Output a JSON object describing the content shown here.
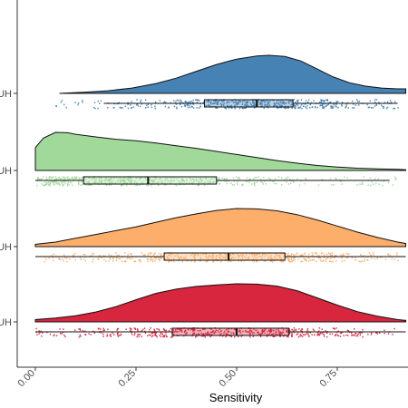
{
  "chart_data": {
    "type": "raincloud",
    "xlabel": "Sensitivity",
    "ylabel": "",
    "xlim": [
      -0.05,
      0.92
    ],
    "x_ticks": [
      "0.00",
      "0.25",
      "0.50",
      "0.75"
    ],
    "x_tick_values": [
      0,
      0.25,
      0.5,
      0.75
    ],
    "grid": false,
    "series": [
      {
        "label": "UH",
        "color": "#d7263d",
        "density": [
          [
            0.0,
            0.06
          ],
          [
            0.05,
            0.1
          ],
          [
            0.1,
            0.16
          ],
          [
            0.15,
            0.26
          ],
          [
            0.2,
            0.4
          ],
          [
            0.25,
            0.58
          ],
          [
            0.3,
            0.75
          ],
          [
            0.35,
            0.86
          ],
          [
            0.4,
            0.93
          ],
          [
            0.45,
            0.97
          ],
          [
            0.5,
            1.0
          ],
          [
            0.55,
            0.99
          ],
          [
            0.6,
            0.94
          ],
          [
            0.65,
            0.82
          ],
          [
            0.7,
            0.63
          ],
          [
            0.75,
            0.44
          ],
          [
            0.8,
            0.27
          ],
          [
            0.85,
            0.15
          ],
          [
            0.9,
            0.06
          ],
          [
            0.92,
            0.04
          ]
        ],
        "box": {
          "q1": 0.34,
          "median": 0.5,
          "q3": 0.63,
          "whisker_low": 0.0,
          "whisker_high": 0.92
        },
        "points_range": [
          0.0,
          0.9
        ]
      },
      {
        "label": "UH",
        "color": "#fdae6b",
        "density": [
          [
            0.0,
            0.06
          ],
          [
            0.05,
            0.12
          ],
          [
            0.1,
            0.22
          ],
          [
            0.15,
            0.32
          ],
          [
            0.2,
            0.42
          ],
          [
            0.25,
            0.52
          ],
          [
            0.3,
            0.64
          ],
          [
            0.35,
            0.76
          ],
          [
            0.4,
            0.86
          ],
          [
            0.45,
            0.95
          ],
          [
            0.5,
            1.0
          ],
          [
            0.55,
            0.99
          ],
          [
            0.6,
            0.94
          ],
          [
            0.65,
            0.84
          ],
          [
            0.7,
            0.7
          ],
          [
            0.75,
            0.54
          ],
          [
            0.8,
            0.38
          ],
          [
            0.85,
            0.24
          ],
          [
            0.9,
            0.12
          ],
          [
            0.92,
            0.08
          ]
        ],
        "box": {
          "q1": 0.32,
          "median": 0.48,
          "q3": 0.62,
          "whisker_low": 0.0,
          "whisker_high": 0.92
        },
        "points_range": [
          0.0,
          0.9
        ]
      },
      {
        "label": "UH",
        "color": "#a1d99b",
        "density": [
          [
            0.0,
            0.6
          ],
          [
            0.02,
            0.85
          ],
          [
            0.05,
            1.0
          ],
          [
            0.08,
            0.99
          ],
          [
            0.1,
            0.95
          ],
          [
            0.15,
            0.88
          ],
          [
            0.2,
            0.82
          ],
          [
            0.25,
            0.78
          ],
          [
            0.3,
            0.72
          ],
          [
            0.35,
            0.65
          ],
          [
            0.4,
            0.58
          ],
          [
            0.45,
            0.5
          ],
          [
            0.5,
            0.42
          ],
          [
            0.55,
            0.34
          ],
          [
            0.6,
            0.26
          ],
          [
            0.65,
            0.19
          ],
          [
            0.7,
            0.13
          ],
          [
            0.75,
            0.09
          ],
          [
            0.8,
            0.06
          ],
          [
            0.85,
            0.04
          ],
          [
            0.9,
            0.03
          ],
          [
            0.92,
            0.02
          ]
        ],
        "box": {
          "q1": 0.12,
          "median": 0.28,
          "q3": 0.45,
          "whisker_low": 0.0,
          "whisker_high": 0.88
        },
        "points_range": [
          0.0,
          0.9
        ]
      },
      {
        "label": "UH",
        "color": "#4682b4",
        "density": [
          [
            0.06,
            0.0
          ],
          [
            0.12,
            0.03
          ],
          [
            0.18,
            0.07
          ],
          [
            0.24,
            0.14
          ],
          [
            0.3,
            0.26
          ],
          [
            0.35,
            0.4
          ],
          [
            0.4,
            0.58
          ],
          [
            0.45,
            0.76
          ],
          [
            0.5,
            0.9
          ],
          [
            0.55,
            0.98
          ],
          [
            0.58,
            1.0
          ],
          [
            0.62,
            0.97
          ],
          [
            0.66,
            0.85
          ],
          [
            0.7,
            0.64
          ],
          [
            0.74,
            0.43
          ],
          [
            0.78,
            0.28
          ],
          [
            0.82,
            0.19
          ],
          [
            0.86,
            0.14
          ],
          [
            0.9,
            0.12
          ],
          [
            0.92,
            0.12
          ]
        ],
        "box": {
          "q1": 0.42,
          "median": 0.55,
          "q3": 0.64,
          "whisker_low": 0.17,
          "whisker_high": 0.9
        },
        "points_range": [
          0.05,
          0.9
        ]
      }
    ]
  }
}
